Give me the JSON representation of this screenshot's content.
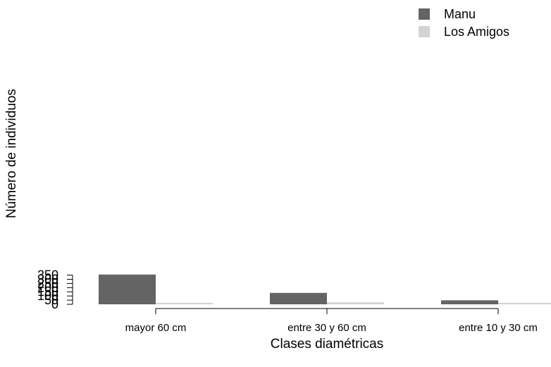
{
  "chart_data": {
    "type": "bar",
    "categories": [
      "mayor 60 cm",
      "entre 30 y 60 cm",
      "entre 10 y 30 cm"
    ],
    "series": [
      {
        "name": "Manu",
        "values": [
          357,
          137,
          48
        ],
        "color": "#646464"
      },
      {
        "name": "Los Amigos",
        "values": [
          18,
          24,
          18
        ],
        "color": "#d3d3d3"
      }
    ],
    "title": "",
    "xlabel": "Clases diamétricas",
    "ylabel": "Número de individuos",
    "ylim": [
      0,
      360
    ],
    "yticks": [
      "0",
      "50",
      "100",
      "150",
      "200",
      "250",
      "300",
      "350"
    ],
    "grid": false,
    "legend_position": "top-right"
  }
}
